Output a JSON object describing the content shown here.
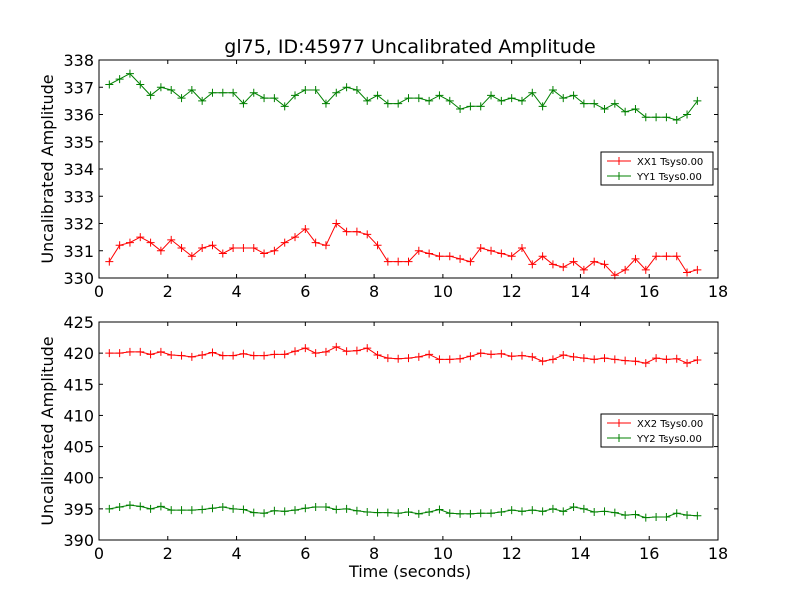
{
  "title": "gl75, ID:45977 Uncalibrated Amplitude",
  "xlabel": "Time (seconds)",
  "chart_data": [
    {
      "type": "line",
      "title": "gl75, ID:45977 Uncalibrated Amplitude",
      "xlabel": "",
      "ylabel": "Uncalibrated Amplitude",
      "xlim": [
        0,
        18
      ],
      "ylim": [
        330,
        338
      ],
      "xticks": [
        0,
        2,
        4,
        6,
        8,
        10,
        12,
        14,
        16,
        18
      ],
      "yticks": [
        330,
        331,
        332,
        333,
        334,
        335,
        336,
        337,
        338
      ],
      "grid": false,
      "legend_position": "right",
      "x": [
        0.3,
        0.6,
        0.9,
        1.2,
        1.5,
        1.8,
        2.1,
        2.4,
        2.7,
        3.0,
        3.3,
        3.6,
        3.9,
        4.2,
        4.5,
        4.8,
        5.1,
        5.4,
        5.7,
        6.0,
        6.3,
        6.6,
        6.9,
        7.2,
        7.5,
        7.8,
        8.1,
        8.4,
        8.7,
        9.0,
        9.3,
        9.6,
        9.9,
        10.2,
        10.5,
        10.8,
        11.1,
        11.4,
        11.7,
        12.0,
        12.3,
        12.6,
        12.9,
        13.2,
        13.5,
        13.8,
        14.1,
        14.4,
        14.7,
        15.0,
        15.3,
        15.6,
        15.9,
        16.2,
        16.5,
        16.8,
        17.1,
        17.4
      ],
      "series": [
        {
          "name": "XX1 Tsys0.00",
          "color": "#ff0000",
          "values": [
            330.6,
            331.2,
            331.3,
            331.5,
            331.3,
            331.0,
            331.4,
            331.1,
            330.8,
            331.1,
            331.2,
            330.9,
            331.1,
            331.1,
            331.1,
            330.9,
            331.0,
            331.3,
            331.5,
            331.8,
            331.3,
            331.2,
            332.0,
            331.7,
            331.7,
            331.6,
            331.2,
            330.6,
            330.6,
            330.6,
            331.0,
            330.9,
            330.8,
            330.8,
            330.7,
            330.6,
            331.1,
            331.0,
            330.9,
            330.8,
            331.1,
            330.5,
            330.8,
            330.5,
            330.4,
            330.6,
            330.3,
            330.6,
            330.5,
            330.1,
            330.3,
            330.7,
            330.3,
            330.8,
            330.8,
            330.8,
            330.2,
            330.3
          ]
        },
        {
          "name": "YY1 Tsys0.00",
          "color": "#008000",
          "values": [
            337.1,
            337.3,
            337.5,
            337.1,
            336.7,
            337.0,
            336.9,
            336.6,
            336.9,
            336.5,
            336.8,
            336.8,
            336.8,
            336.4,
            336.8,
            336.6,
            336.6,
            336.3,
            336.7,
            336.9,
            336.9,
            336.4,
            336.8,
            337.0,
            336.9,
            336.5,
            336.7,
            336.4,
            336.4,
            336.6,
            336.6,
            336.5,
            336.7,
            336.5,
            336.2,
            336.3,
            336.3,
            336.7,
            336.5,
            336.6,
            336.5,
            336.8,
            336.3,
            336.9,
            336.6,
            336.7,
            336.4,
            336.4,
            336.2,
            336.4,
            336.1,
            336.2,
            335.9,
            335.9,
            335.9,
            335.8,
            336.0,
            336.5
          ]
        }
      ]
    },
    {
      "type": "line",
      "title": "",
      "xlabel": "Time (seconds)",
      "ylabel": "Uncalibrated Amplitude",
      "xlim": [
        0,
        18
      ],
      "ylim": [
        390,
        425
      ],
      "xticks": [
        0,
        2,
        4,
        6,
        8,
        10,
        12,
        14,
        16,
        18
      ],
      "yticks": [
        390,
        395,
        400,
        405,
        410,
        415,
        420,
        425
      ],
      "grid": false,
      "legend_position": "right",
      "x": [
        0.3,
        0.6,
        0.9,
        1.2,
        1.5,
        1.8,
        2.1,
        2.4,
        2.7,
        3.0,
        3.3,
        3.6,
        3.9,
        4.2,
        4.5,
        4.8,
        5.1,
        5.4,
        5.7,
        6.0,
        6.3,
        6.6,
        6.9,
        7.2,
        7.5,
        7.8,
        8.1,
        8.4,
        8.7,
        9.0,
        9.3,
        9.6,
        9.9,
        10.2,
        10.5,
        10.8,
        11.1,
        11.4,
        11.7,
        12.0,
        12.3,
        12.6,
        12.9,
        13.2,
        13.5,
        13.8,
        14.1,
        14.4,
        14.7,
        15.0,
        15.3,
        15.6,
        15.9,
        16.2,
        16.5,
        16.8,
        17.1,
        17.4
      ],
      "series": [
        {
          "name": "XX2 Tsys0.00",
          "color": "#ff0000",
          "values": [
            420.0,
            420.0,
            420.2,
            420.2,
            419.8,
            420.2,
            419.7,
            419.6,
            419.4,
            419.7,
            420.1,
            419.6,
            419.6,
            419.9,
            419.6,
            419.6,
            419.8,
            419.8,
            420.3,
            420.8,
            420.0,
            420.2,
            421.0,
            420.3,
            420.4,
            420.8,
            419.7,
            419.2,
            419.1,
            419.2,
            419.4,
            419.8,
            419.0,
            419.0,
            419.1,
            419.5,
            420.0,
            419.8,
            419.9,
            419.5,
            419.6,
            419.4,
            418.7,
            419.0,
            419.7,
            419.4,
            419.2,
            419.0,
            419.2,
            419.0,
            418.8,
            418.7,
            418.4,
            419.2,
            419.0,
            419.1,
            418.4,
            418.9
          ]
        },
        {
          "name": "YY2 Tsys0.00",
          "color": "#008000",
          "values": [
            395.0,
            395.3,
            395.6,
            395.4,
            395.0,
            395.4,
            394.8,
            394.8,
            394.8,
            394.9,
            395.1,
            395.3,
            395.0,
            394.9,
            394.4,
            394.3,
            394.7,
            394.6,
            394.8,
            395.1,
            395.3,
            395.3,
            394.9,
            395.0,
            394.7,
            394.5,
            394.4,
            394.4,
            394.3,
            394.5,
            394.2,
            394.5,
            394.9,
            394.3,
            394.2,
            394.2,
            394.3,
            394.3,
            394.5,
            394.8,
            394.6,
            394.8,
            394.6,
            395.0,
            394.6,
            395.3,
            395.0,
            394.5,
            394.6,
            394.4,
            394.0,
            394.1,
            393.6,
            393.7,
            393.7,
            394.3,
            394.0,
            393.9
          ]
        }
      ]
    }
  ]
}
